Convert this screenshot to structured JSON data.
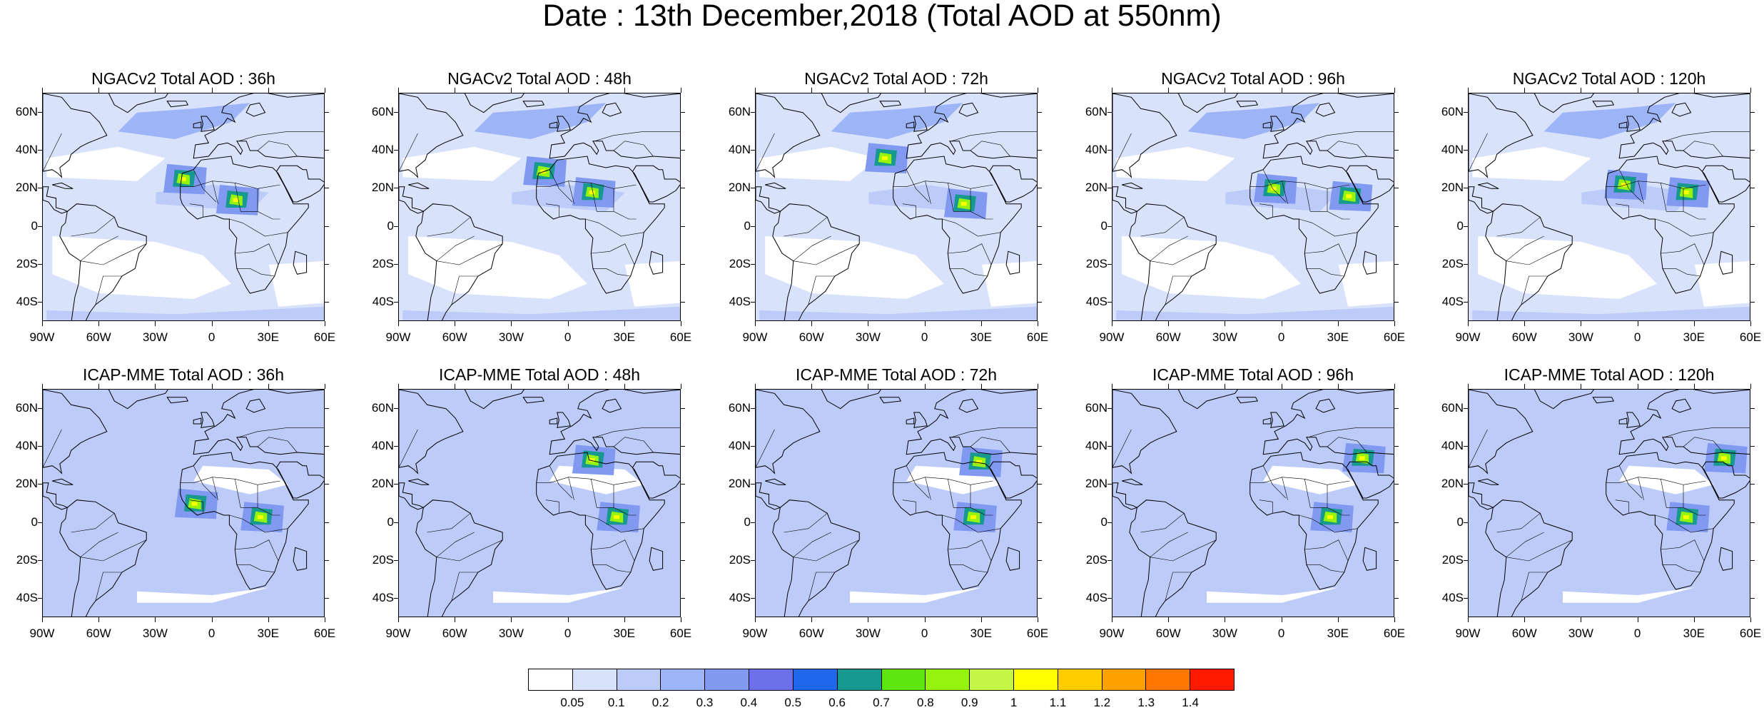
{
  "title": "Date : 13th December,2018 (Total AOD at 550nm)",
  "panels": [
    {
      "label": "NGACv2 Total AOD : 36h",
      "model": "NGACv2",
      "lead_hours": 36
    },
    {
      "label": "NGACv2 Total AOD : 48h",
      "model": "NGACv2",
      "lead_hours": 48
    },
    {
      "label": "NGACv2 Total AOD : 72h",
      "model": "NGACv2",
      "lead_hours": 72
    },
    {
      "label": "NGACv2 Total AOD : 96h",
      "model": "NGACv2",
      "lead_hours": 96
    },
    {
      "label": "NGACv2 Total AOD : 120h",
      "model": "NGACv2",
      "lead_hours": 120
    },
    {
      "label": "ICAP-MME Total AOD : 36h",
      "model": "ICAP-MME",
      "lead_hours": 36
    },
    {
      "label": "ICAP-MME Total AOD : 48h",
      "model": "ICAP-MME",
      "lead_hours": 48
    },
    {
      "label": "ICAP-MME Total AOD : 72h",
      "model": "ICAP-MME",
      "lead_hours": 72
    },
    {
      "label": "ICAP-MME Total AOD : 96h",
      "model": "ICAP-MME",
      "lead_hours": 96
    },
    {
      "label": "ICAP-MME Total AOD : 120h",
      "model": "ICAP-MME",
      "lead_hours": 120
    }
  ],
  "lat_labels": [
    "60N",
    "40N",
    "20N",
    "0",
    "20S",
    "40S"
  ],
  "lat_values": [
    60,
    40,
    20,
    0,
    -20,
    -40
  ],
  "lon_labels": [
    "90W",
    "60W",
    "30W",
    "0",
    "30E",
    "60E"
  ],
  "lon_values": [
    -90,
    -60,
    -30,
    0,
    30,
    60
  ],
  "extent": {
    "lon_min": -90,
    "lon_max": 60,
    "lat_min": -50,
    "lat_max": 70
  },
  "colorbar": {
    "colors": [
      "#ffffff",
      "#d8e2fb",
      "#bccbf8",
      "#9db4f6",
      "#8199f1",
      "#6c70ea",
      "#1f68ec",
      "#17998f",
      "#5fe610",
      "#96f20f",
      "#c5f546",
      "#ffff00",
      "#ffcc00",
      "#ffa200",
      "#ff7700",
      "#ff1a00"
    ],
    "labels": [
      "0.05",
      "0.1",
      "0.2",
      "0.3",
      "0.4",
      "0.5",
      "0.6",
      "0.7",
      "0.8",
      "0.9",
      "1",
      "1.1",
      "1.2",
      "1.3",
      "1.4"
    ]
  }
}
